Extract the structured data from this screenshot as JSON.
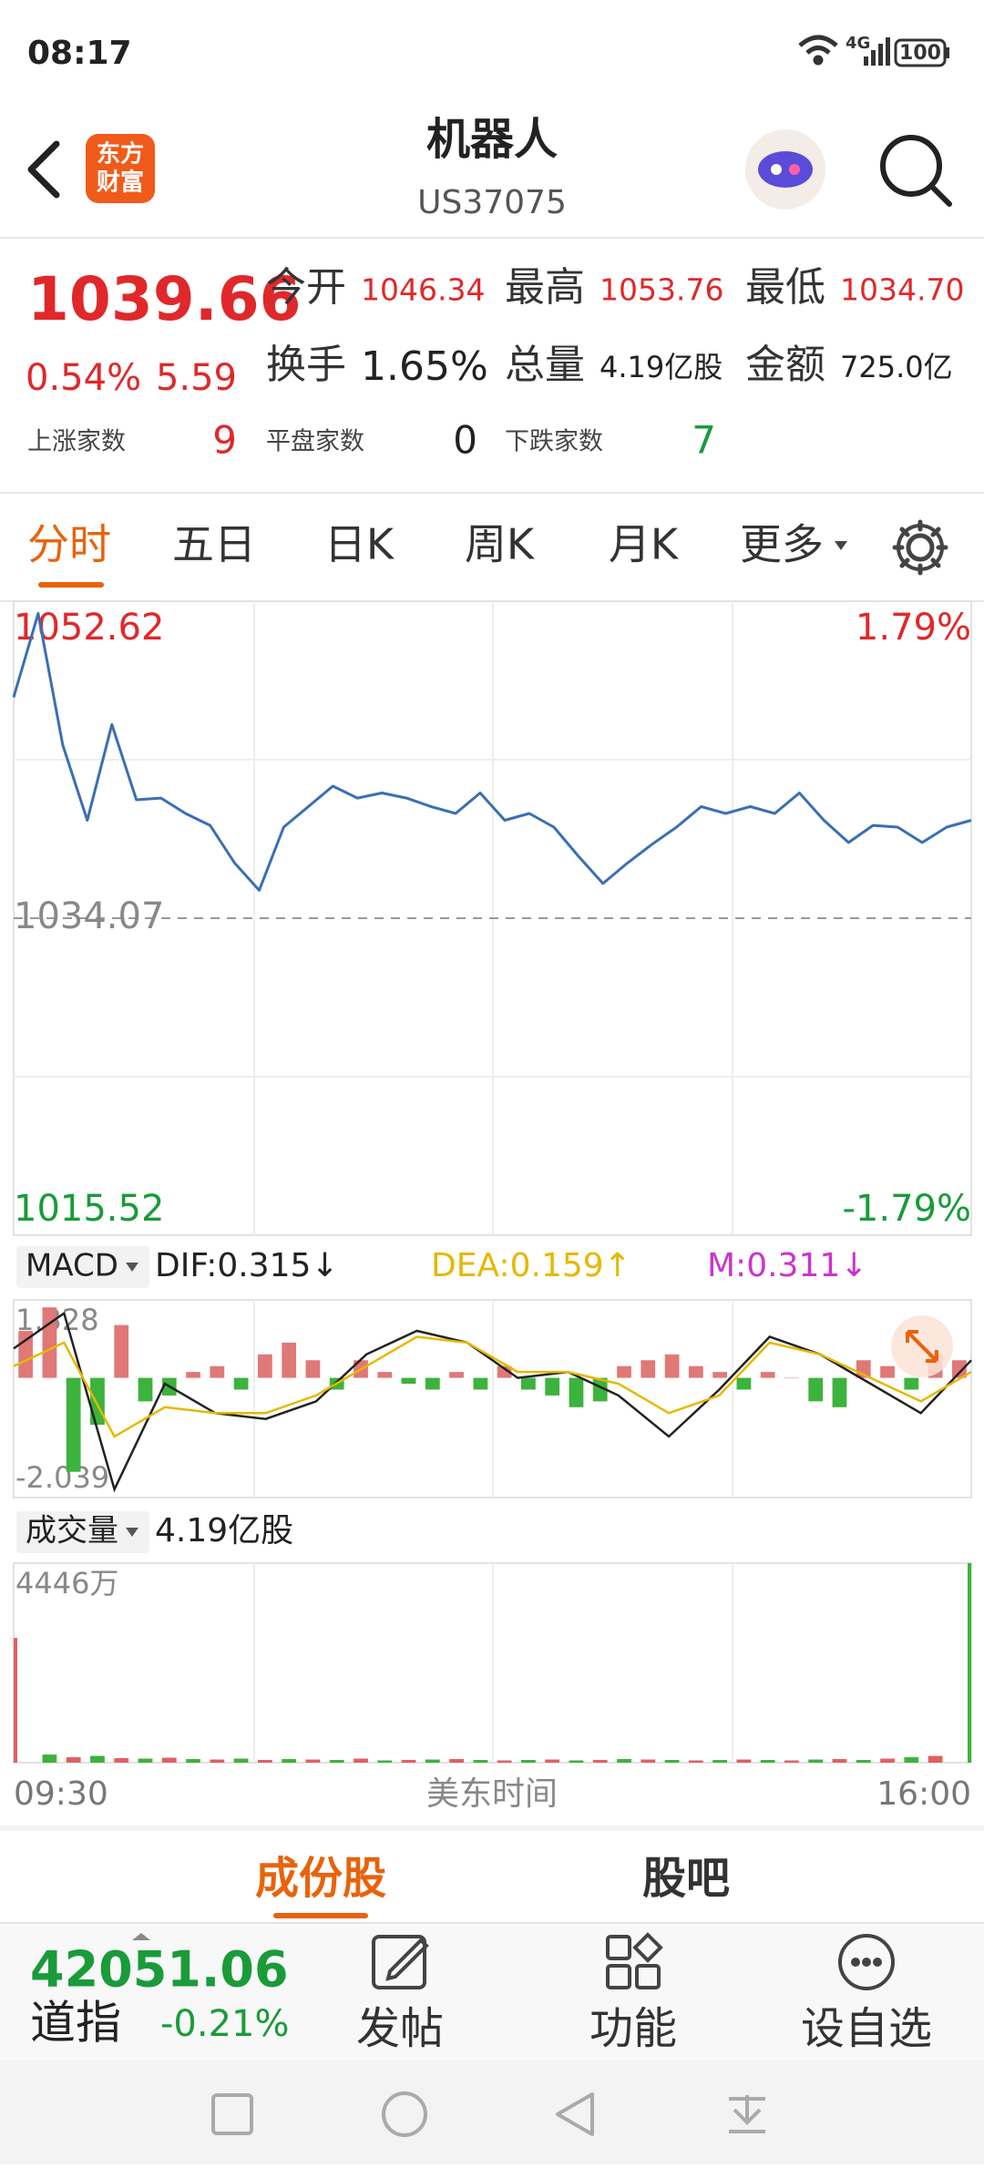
{
  "status_bar": {
    "time": "08:17",
    "network": "4G",
    "battery": "100"
  },
  "header": {
    "logo_line1": "东方",
    "logo_line2": "财富",
    "title": "机器人",
    "code": "US37075"
  },
  "quote": {
    "price": "1039.66",
    "change_pct": "0.54%",
    "change": "5.59",
    "fields": [
      {
        "label": "今开",
        "value": "1046.34"
      },
      {
        "label": "最高",
        "value": "1053.76"
      },
      {
        "label": "最低",
        "value": "1034.70"
      },
      {
        "label": "换手",
        "value": "1.65%"
      },
      {
        "label": "总量",
        "value": "4.19亿股"
      },
      {
        "label": "金额",
        "value": "725.0亿"
      }
    ],
    "breadth": [
      {
        "label": "上涨家数",
        "value": "9"
      },
      {
        "label": "平盘家数",
        "value": "0"
      },
      {
        "label": "下跌家数",
        "value": "7"
      }
    ]
  },
  "tabs": [
    "分时",
    "五日",
    "日K",
    "周K",
    "月K",
    "更多"
  ],
  "chart_data": [
    {
      "type": "line",
      "series": [
        {
          "color": "#3a6fb4",
          "values": [
            1047.0,
            1051.9,
            1044.2,
            1039.8,
            1045.4,
            1041.0,
            1041.1,
            1040.2,
            1039.5,
            1037.3,
            1035.7,
            1039.4,
            1040.6,
            1041.8,
            1041.1,
            1041.4,
            1041.1,
            1040.6,
            1040.2,
            1041.4,
            1039.8,
            1040.2,
            1039.4,
            1037.7,
            1036.1,
            1037.3,
            1038.4,
            1039.4,
            1040.6,
            1040.2,
            1040.6,
            1040.2,
            1041.4,
            1039.8,
            1038.5,
            1039.5,
            1039.4,
            1038.5,
            1039.4,
            1039.8
          ]
        }
      ],
      "ylim": [
        1015.52,
        1052.62
      ],
      "yticks": [
        1052.62,
        1034.07,
        1015.52
      ],
      "y2lim": [
        -1.79,
        1.79
      ],
      "y2ticks": [
        {
          "value": 1.79,
          "label": "1.79%"
        },
        {
          "value": -1.79,
          "label": "-1.79%"
        }
      ],
      "grid": true
    },
    {
      "type": "macd",
      "indicator": "MACD",
      "series": [
        {
          "name": "DIF:0.315↓",
          "color": "#222222",
          "values": [
            0.5,
            1.1,
            -1.9,
            -0.1,
            -0.6,
            -0.7,
            -0.4,
            0.4,
            0.8,
            0.6,
            0.0,
            0.1,
            -0.3,
            -1.0,
            -0.2,
            0.7,
            0.4,
            -0.1,
            -0.6,
            0.3
          ]
        },
        {
          "name": "DEA:0.159↑",
          "color": "#e6b800",
          "values": [
            0.2,
            0.6,
            -1.0,
            -0.5,
            -0.6,
            -0.6,
            -0.3,
            0.2,
            0.7,
            0.6,
            0.1,
            0.1,
            -0.1,
            -0.6,
            -0.3,
            0.6,
            0.4,
            0.0,
            -0.4,
            0.1
          ]
        },
        {
          "name": "M:0.311↓",
          "color": "#cc33cc",
          "type": "bar",
          "up_color": "#e07878",
          "down_color": "#3cb33c",
          "values": [
            0.8,
            1.2,
            -1.6,
            -0.8,
            0.9,
            -0.4,
            -0.3,
            0.1,
            0.2,
            -0.2,
            0.4,
            0.6,
            0.3,
            -0.2,
            0.3,
            0.1,
            -0.1,
            -0.2,
            0.1,
            -0.2,
            0.2,
            -0.2,
            -0.3,
            -0.5,
            -0.4,
            0.2,
            0.3,
            0.4,
            0.2,
            0.1,
            -0.2,
            0.1,
            0.0,
            -0.4,
            -0.5,
            0.3,
            0.2,
            -0.2,
            0.4,
            0.3
          ]
        }
      ],
      "ylim": [
        -2.039,
        1.328
      ],
      "yticks": [
        1.328,
        -2.039
      ]
    },
    {
      "type": "bar",
      "indicator": "成交量",
      "total": "4.19亿股",
      "colors": [
        "#e06060",
        "#3cb33c"
      ],
      "values": [
        2780,
        180,
        120,
        150,
        100,
        90,
        110,
        80,
        70,
        90,
        60,
        80,
        70,
        60,
        90,
        50,
        60,
        70,
        80,
        60,
        50,
        60,
        70,
        50,
        60,
        80,
        70,
        60,
        50,
        60,
        70,
        60,
        50,
        70,
        80,
        60,
        90,
        120,
        150,
        4446
      ],
      "ylim": [
        0,
        4446
      ],
      "yticks": [
        {
          "value": 4446,
          "label": "4446万"
        }
      ]
    }
  ],
  "time_axis": {
    "start": "09:30",
    "label": "美东时间",
    "end": "16:00"
  },
  "sub_tabs": [
    "成份股",
    "股吧"
  ],
  "footer": {
    "index_value": "42051.06",
    "index_name": "道指",
    "index_change": "-0.21%",
    "actions": [
      "发帖",
      "功能",
      "设自选"
    ]
  }
}
